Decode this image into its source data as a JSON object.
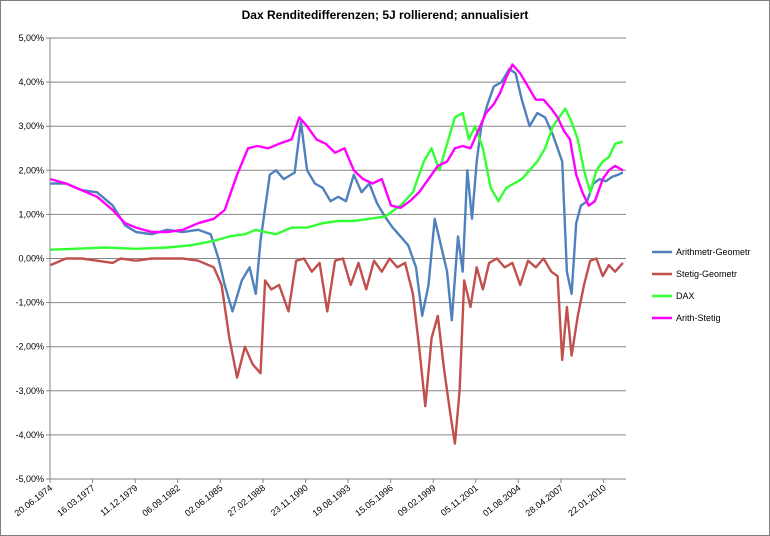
{
  "chart_data": {
    "type": "line",
    "title": "Dax Renditedifferenzen; 5J rollierend; annualisiert",
    "xlabel": "",
    "ylabel": "",
    "ylim": [
      -5,
      5
    ],
    "y_tick_labels": [
      "5,00%",
      "4,00%",
      "3,00%",
      "2,00%",
      "1,00%",
      "0,00%",
      "-1,00%",
      "-2,00%",
      "-3,00%",
      "-4,00%",
      "-5,00%"
    ],
    "y_ticks": [
      5,
      4,
      3,
      2,
      1,
      0,
      -1,
      -2,
      -3,
      -4,
      -5
    ],
    "x_tick_labels": [
      "20.06.1974",
      "16.03.1977",
      "11.12.1979",
      "06.09.1982",
      "02.06.1985",
      "27.02.1988",
      "23.11.1990",
      "19.08.1993",
      "15.05.1996",
      "09.02.1999",
      "05.11.2001",
      "01.08.2004",
      "28.04.2007",
      "22.01.2010"
    ],
    "x_ticks": [
      1974.47,
      1977.21,
      1979.95,
      1982.68,
      1985.42,
      1988.16,
      1990.9,
      1993.63,
      1996.37,
      1999.11,
      2001.84,
      2004.58,
      2007.32,
      2010.06
    ],
    "xlim": [
      1974.47,
      2011.5
    ],
    "grid": "horizontal",
    "legend_position": "right",
    "series": [
      {
        "name": "Arithmetr-Geometr",
        "color": "#4f81bd",
        "x": [
          1974.5,
          1975.5,
          1976.5,
          1977.5,
          1978.5,
          1979.3,
          1980.0,
          1981.0,
          1982.0,
          1983.0,
          1984.0,
          1984.8,
          1985.3,
          1985.7,
          1986.2,
          1986.8,
          1987.3,
          1987.7,
          1988.0,
          1988.6,
          1989.0,
          1989.5,
          1990.2,
          1990.6,
          1991.0,
          1991.5,
          1992.0,
          1992.5,
          1993.0,
          1993.5,
          1994.0,
          1994.5,
          1995.0,
          1995.5,
          1996.0,
          1996.5,
          1997.0,
          1997.5,
          1998.0,
          1998.4,
          1998.8,
          1999.2,
          1999.6,
          2000.0,
          2000.3,
          2000.7,
          2001.0,
          2001.3,
          2001.6,
          2001.9,
          2002.2,
          2002.6,
          2003.0,
          2003.5,
          2004.0,
          2004.4,
          2004.8,
          2005.3,
          2005.8,
          2006.3,
          2006.8,
          2007.1,
          2007.4,
          2007.7,
          2008.0,
          2008.3,
          2008.6,
          2009.0,
          2009.4,
          2009.8,
          2010.2,
          2010.6,
          2011.0,
          2011.3
        ],
        "values": [
          1.7,
          1.7,
          1.55,
          1.5,
          1.2,
          0.75,
          0.6,
          0.55,
          0.65,
          0.6,
          0.65,
          0.55,
          0.0,
          -0.6,
          -1.2,
          -0.5,
          -0.2,
          -0.8,
          0.4,
          1.9,
          2.0,
          1.8,
          1.95,
          3.1,
          2.0,
          1.7,
          1.6,
          1.3,
          1.4,
          1.3,
          1.9,
          1.5,
          1.7,
          1.25,
          0.95,
          0.7,
          0.5,
          0.3,
          -0.2,
          -1.3,
          -0.6,
          0.9,
          0.3,
          -0.3,
          -1.4,
          0.5,
          -0.3,
          2.0,
          0.9,
          2.2,
          3.0,
          3.5,
          3.9,
          4.0,
          4.3,
          4.2,
          3.6,
          3.0,
          3.3,
          3.2,
          2.8,
          2.5,
          2.2,
          -0.3,
          -0.8,
          0.8,
          1.2,
          1.3,
          1.7,
          1.8,
          1.75,
          1.85,
          1.9,
          1.95
        ]
      },
      {
        "name": "Stetig-Geometr",
        "color": "#c0504d",
        "x": [
          1974.5,
          1975.5,
          1976.5,
          1977.5,
          1978.5,
          1979.0,
          1980.0,
          1981.0,
          1982.0,
          1983.0,
          1984.0,
          1985.0,
          1985.5,
          1986.0,
          1986.5,
          1987.0,
          1987.5,
          1988.0,
          1988.3,
          1988.7,
          1989.2,
          1989.8,
          1990.3,
          1990.8,
          1991.3,
          1991.8,
          1992.3,
          1992.8,
          1993.3,
          1993.8,
          1994.3,
          1994.8,
          1995.3,
          1995.8,
          1996.3,
          1996.8,
          1997.3,
          1997.8,
          1998.2,
          1998.6,
          1999.0,
          1999.4,
          1999.8,
          2000.2,
          2000.5,
          2000.8,
          2001.1,
          2001.5,
          2001.9,
          2002.3,
          2002.7,
          2003.2,
          2003.7,
          2004.2,
          2004.7,
          2005.2,
          2005.7,
          2006.2,
          2006.7,
          2007.1,
          2007.4,
          2007.7,
          2008.0,
          2008.4,
          2008.8,
          2009.2,
          2009.6,
          2010.0,
          2010.4,
          2010.8,
          2011.3
        ],
        "values": [
          -0.15,
          0.0,
          0.0,
          -0.05,
          -0.1,
          0.0,
          -0.05,
          0.0,
          0.0,
          0.0,
          -0.05,
          -0.2,
          -0.6,
          -1.8,
          -2.7,
          -2.0,
          -2.4,
          -2.6,
          -0.5,
          -0.7,
          -0.6,
          -1.2,
          -0.05,
          0.0,
          -0.3,
          -0.1,
          -1.2,
          -0.05,
          0.0,
          -0.6,
          -0.1,
          -0.7,
          -0.05,
          -0.3,
          0.0,
          -0.2,
          -0.1,
          -0.8,
          -2.0,
          -3.35,
          -1.8,
          -1.3,
          -2.5,
          -3.5,
          -4.2,
          -3.0,
          -0.5,
          -1.1,
          -0.2,
          -0.7,
          -0.1,
          0.0,
          -0.2,
          -0.1,
          -0.6,
          -0.05,
          -0.2,
          0.0,
          -0.3,
          -0.4,
          -2.3,
          -1.1,
          -2.2,
          -1.3,
          -0.6,
          -0.05,
          0.0,
          -0.4,
          -0.15,
          -0.3,
          -0.1
        ]
      },
      {
        "name": "DAX",
        "color": "#33ff33",
        "x": [
          1974.5,
          1976.0,
          1978.0,
          1980.0,
          1982.0,
          1983.5,
          1985.0,
          1986.0,
          1987.0,
          1987.7,
          1988.3,
          1989.0,
          1990.0,
          1991.0,
          1992.0,
          1993.0,
          1994.0,
          1995.0,
          1996.0,
          1997.0,
          1997.8,
          1998.5,
          1999.0,
          1999.5,
          2000.0,
          2000.5,
          2001.0,
          2001.4,
          2001.8,
          2002.3,
          2002.8,
          2003.3,
          2003.8,
          2004.3,
          2004.8,
          2005.3,
          2005.8,
          2006.3,
          2006.8,
          2007.2,
          2007.6,
          2008.0,
          2008.4,
          2008.8,
          2009.2,
          2009.6,
          2010.0,
          2010.4,
          2010.8,
          2011.3
        ],
        "values": [
          0.2,
          0.22,
          0.25,
          0.22,
          0.25,
          0.3,
          0.4,
          0.5,
          0.55,
          0.65,
          0.6,
          0.55,
          0.7,
          0.7,
          0.8,
          0.85,
          0.85,
          0.9,
          0.95,
          1.2,
          1.5,
          2.2,
          2.5,
          2.0,
          2.6,
          3.2,
          3.3,
          2.7,
          3.0,
          2.5,
          1.6,
          1.3,
          1.6,
          1.7,
          1.8,
          2.0,
          2.2,
          2.5,
          3.0,
          3.2,
          3.4,
          3.1,
          2.7,
          2.0,
          1.5,
          2.0,
          2.2,
          2.3,
          2.6,
          2.65
        ]
      },
      {
        "name": "Arith-Stetig",
        "color": "#ff00ff",
        "x": [
          1974.5,
          1975.5,
          1976.5,
          1977.5,
          1978.5,
          1979.3,
          1980.0,
          1981.0,
          1982.0,
          1983.0,
          1984.0,
          1985.0,
          1985.7,
          1986.5,
          1987.2,
          1987.8,
          1988.5,
          1989.2,
          1990.0,
          1990.5,
          1991.0,
          1991.6,
          1992.2,
          1992.8,
          1993.4,
          1994.0,
          1994.6,
          1995.2,
          1995.8,
          1996.4,
          1997.0,
          1997.6,
          1998.2,
          1998.8,
          1999.4,
          2000.0,
          2000.5,
          2001.0,
          2001.5,
          2002.0,
          2002.5,
          2003.0,
          2003.4,
          2003.8,
          2004.2,
          2004.7,
          2005.2,
          2005.7,
          2006.2,
          2006.7,
          2007.1,
          2007.5,
          2007.9,
          2008.3,
          2008.7,
          2009.1,
          2009.5,
          2010.0,
          2010.4,
          2010.8,
          2011.3
        ],
        "values": [
          1.8,
          1.7,
          1.55,
          1.4,
          1.1,
          0.8,
          0.7,
          0.6,
          0.6,
          0.65,
          0.8,
          0.9,
          1.1,
          1.9,
          2.5,
          2.55,
          2.5,
          2.6,
          2.7,
          3.2,
          3.0,
          2.7,
          2.6,
          2.4,
          2.5,
          2.0,
          1.8,
          1.7,
          1.8,
          1.2,
          1.15,
          1.3,
          1.5,
          1.8,
          2.1,
          2.2,
          2.5,
          2.55,
          2.5,
          2.9,
          3.3,
          3.5,
          3.75,
          4.1,
          4.4,
          4.2,
          3.9,
          3.6,
          3.6,
          3.4,
          3.2,
          2.9,
          2.7,
          1.9,
          1.5,
          1.2,
          1.3,
          1.8,
          2.0,
          2.1,
          2.0
        ]
      }
    ]
  }
}
